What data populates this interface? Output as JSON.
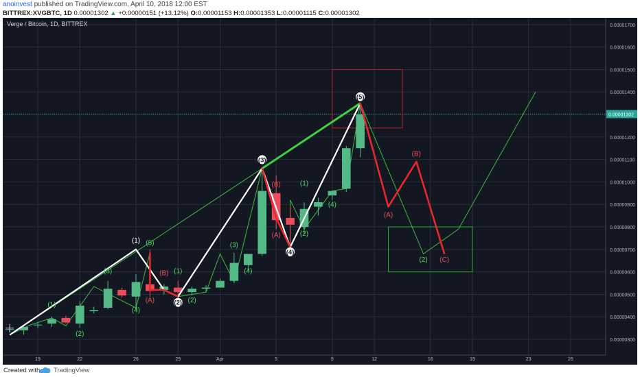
{
  "header": {
    "user": "anoinvest",
    "published": "published on TradingView.com, April 10, 2018 12:00 EST",
    "symbol": "BITTREX:XVGBTC, 1D",
    "last": "0.00001302",
    "change_arrow": "▲",
    "change": "+0.00000151 (+13.12%)",
    "o_label": "O:",
    "o": "0.00001153",
    "h_label": "H:",
    "h": "0.00001353",
    "l_label": "L:",
    "l": "0.00001115",
    "c_label": "C:",
    "c": "0.00001302"
  },
  "footer": {
    "created": "Created with",
    "brand": "TradingView"
  },
  "chart_data": {
    "type": "candlestick",
    "title": "Verge / Bitcoin, 1D, BITTREX",
    "price_label": "0.00001302",
    "y_ticks": [
      "0.00001700",
      "0.00001600",
      "0.00001500",
      "0.00001400",
      "0.00001300",
      "0.00001200",
      "0.00001100",
      "0.00001000",
      "0.00000900",
      "0.00000800",
      "0.00000700",
      "0.00000600",
      "0.00000500",
      "0.00000400",
      "0.00000300"
    ],
    "x_ticks": [
      {
        "label": "19",
        "day": 0
      },
      {
        "label": "22",
        "day": 3
      },
      {
        "label": "26",
        "day": 7
      },
      {
        "label": "29",
        "day": 10
      },
      {
        "label": "Apr",
        "day": 13
      },
      {
        "label": "5",
        "day": 17
      },
      {
        "label": "9",
        "day": 21
      },
      {
        "label": "12",
        "day": 24
      },
      {
        "label": "16",
        "day": 28
      },
      {
        "label": "19",
        "day": 31
      },
      {
        "label": "23",
        "day": 35
      },
      {
        "label": "26",
        "day": 38
      }
    ],
    "ylim": [
      2.3e-06,
      1.73e-05
    ],
    "xlim_days": [
      -2.5,
      40.5
    ],
    "colors": {
      "up": "#53b987",
      "down": "#eb4d5c",
      "background": "#131722",
      "grid": "#2a2e39"
    },
    "candles": [
      {
        "day": -2,
        "o": 3.45,
        "h": 3.55,
        "l": 3.3,
        "c": 3.45
      },
      {
        "day": -1,
        "o": 3.4,
        "h": 3.6,
        "l": 3.2,
        "c": 3.55
      },
      {
        "day": 0,
        "o": 3.65,
        "h": 3.75,
        "l": 3.5,
        "c": 3.65
      },
      {
        "day": 1,
        "o": 3.7,
        "h": 4.0,
        "l": 3.55,
        "c": 3.9
      },
      {
        "day": 2,
        "o": 3.95,
        "h": 4.05,
        "l": 3.7,
        "c": 3.75
      },
      {
        "day": 3,
        "o": 3.7,
        "h": 4.7,
        "l": 3.5,
        "c": 4.5
      },
      {
        "day": 4,
        "o": 4.25,
        "h": 4.45,
        "l": 4.15,
        "c": 4.3
      },
      {
        "day": 5,
        "o": 4.4,
        "h": 5.6,
        "l": 4.35,
        "c": 5.25
      },
      {
        "day": 6,
        "o": 5.2,
        "h": 5.3,
        "l": 4.85,
        "c": 4.95
      },
      {
        "day": 7,
        "o": 4.9,
        "h": 5.9,
        "l": 4.3,
        "c": 5.55
      },
      {
        "day": 8,
        "o": 5.45,
        "h": 7.0,
        "l": 4.9,
        "c": 5.15
      },
      {
        "day": 9,
        "o": 5.2,
        "h": 5.45,
        "l": 5.0,
        "c": 5.35
      },
      {
        "day": 10,
        "o": 5.3,
        "h": 5.6,
        "l": 4.7,
        "c": 5.1
      },
      {
        "day": 11,
        "o": 5.1,
        "h": 5.35,
        "l": 4.95,
        "c": 5.25
      },
      {
        "day": 12,
        "o": 5.25,
        "h": 5.4,
        "l": 5.1,
        "c": 5.3
      },
      {
        "day": 13,
        "o": 5.3,
        "h": 5.7,
        "l": 5.3,
        "c": 5.6
      },
      {
        "day": 14,
        "o": 5.6,
        "h": 6.85,
        "l": 5.5,
        "c": 6.4
      },
      {
        "day": 15,
        "o": 6.3,
        "h": 6.8,
        "l": 6.05,
        "c": 6.8
      },
      {
        "day": 16,
        "o": 6.8,
        "h": 10.6,
        "l": 6.7,
        "c": 9.6
      },
      {
        "day": 17,
        "o": 9.5,
        "h": 10.3,
        "l": 7.9,
        "c": 8.3
      },
      {
        "day": 18,
        "o": 8.4,
        "h": 8.9,
        "l": 7.0,
        "c": 8.1
      },
      {
        "day": 19,
        "o": 8.0,
        "h": 9.1,
        "l": 7.7,
        "c": 8.8
      },
      {
        "day": 20,
        "o": 8.9,
        "h": 9.3,
        "l": 8.5,
        "c": 9.1
      },
      {
        "day": 21,
        "o": 9.4,
        "h": 9.6,
        "l": 9.2,
        "c": 9.6
      },
      {
        "day": 22,
        "o": 9.7,
        "h": 11.6,
        "l": 9.55,
        "c": 11.5
      },
      {
        "day": 23,
        "o": 11.5,
        "h": 13.5,
        "l": 11.1,
        "c": 13.0
      }
    ],
    "annotations": {
      "white_path": [
        [
          -2,
          3.2
        ],
        [
          7,
          7.0
        ],
        [
          9,
          5.2
        ],
        [
          10,
          4.9
        ],
        [
          16,
          10.6
        ],
        [
          18,
          7.1
        ],
        [
          23,
          13.5
        ]
      ],
      "green_thick": [
        [
          16,
          10.6
        ],
        [
          23,
          13.5
        ]
      ],
      "green_thin": [
        [
          [
            -2,
            3.2
          ],
          [
            16,
            10.6
          ]
        ],
        [
          [
            -2,
            3.2
          ],
          [
            -0.5,
            3.65
          ],
          [
            1,
            3.95
          ],
          [
            2,
            3.6
          ],
          [
            4,
            5.35
          ],
          [
            7,
            4.4
          ],
          [
            8,
            6.85
          ]
        ],
        [
          [
            10,
            4.9
          ],
          [
            12,
            5.1
          ],
          [
            13,
            6.8
          ],
          [
            14,
            5.55
          ],
          [
            16,
            10.6
          ]
        ],
        [
          [
            18,
            7.1
          ],
          [
            18,
            9.2
          ],
          [
            19,
            7.9
          ],
          [
            21,
            9.6
          ],
          [
            22,
            9.7
          ],
          [
            23,
            13.5
          ]
        ],
        [
          [
            23,
            13.5
          ],
          [
            27.5,
            6.8
          ],
          [
            30,
            7.9
          ],
          [
            35.5,
            14.0
          ]
        ]
      ],
      "red_paths": [
        [
          [
            8,
            6.85
          ],
          [
            8,
            5.2
          ],
          [
            9,
            5.2
          ],
          [
            10,
            4.9
          ]
        ],
        [
          [
            16,
            10.6
          ],
          [
            17,
            8.4
          ],
          [
            18,
            7.1
          ]
        ],
        [
          [
            23,
            13.5
          ],
          [
            25,
            8.9
          ],
          [
            27,
            10.9
          ],
          [
            29,
            6.8
          ]
        ]
      ],
      "boxes": [
        {
          "d0": 21,
          "d1": 26,
          "p0": 15.0,
          "p1": 12.4,
          "color": "#b22222"
        },
        {
          "d0": 25,
          "d1": 31,
          "p0": 8.0,
          "p1": 6.0,
          "color": "#2eaa2e"
        }
      ],
      "labels": [
        {
          "text": "(1)",
          "day": 7,
          "price": 7.3,
          "color": "#ffffff",
          "style": "plain"
        },
        {
          "text": "(5)",
          "day": 8,
          "price": 7.2,
          "color": "#4cd964",
          "style": "plain"
        },
        {
          "text": "(1)",
          "day": 1,
          "price": 4.45,
          "color": "#4cd964",
          "style": "plain"
        },
        {
          "text": "(2)",
          "day": 3,
          "price": 3.15,
          "color": "#4cd964",
          "style": "plain"
        },
        {
          "text": "(3)",
          "day": 5,
          "price": 5.95,
          "color": "#4cd964",
          "style": "plain"
        },
        {
          "text": "(4)",
          "day": 7,
          "price": 4.2,
          "color": "#4cd964",
          "style": "plain"
        },
        {
          "text": "(A)",
          "day": 8,
          "price": 4.65,
          "color": "#eb4d5c",
          "style": "plain"
        },
        {
          "text": "(B)",
          "day": 9,
          "price": 5.85,
          "color": "#eb4d5c",
          "style": "plain"
        },
        {
          "text": "(1)",
          "day": 10,
          "price": 5.95,
          "color": "#4cd964",
          "style": "plain"
        },
        {
          "text": "(2)",
          "day": 10,
          "price": 4.55,
          "color": "#ffffff",
          "style": "badge"
        },
        {
          "text": "(2)",
          "day": 11,
          "price": 4.65,
          "color": "#4cd964",
          "style": "plain"
        },
        {
          "text": "(3)",
          "day": 14,
          "price": 7.1,
          "color": "#4cd964",
          "style": "plain"
        },
        {
          "text": "(4)",
          "day": 15,
          "price": 5.95,
          "color": "#4cd964",
          "style": "plain"
        },
        {
          "text": "(3)",
          "day": 16,
          "price": 10.9,
          "color": "#ffffff",
          "style": "badge"
        },
        {
          "text": "(B)",
          "day": 17,
          "price": 9.8,
          "color": "#eb4d5c",
          "style": "plain"
        },
        {
          "text": "(A)",
          "day": 17,
          "price": 7.55,
          "color": "#eb4d5c",
          "style": "plain"
        },
        {
          "text": "(1)",
          "day": 19,
          "price": 9.85,
          "color": "#4cd964",
          "style": "plain"
        },
        {
          "text": "(4)",
          "day": 18,
          "price": 6.8,
          "color": "#ffffff",
          "style": "badge"
        },
        {
          "text": "(2)",
          "day": 19,
          "price": 7.6,
          "color": "#4cd964",
          "style": "plain"
        },
        {
          "text": "(4)",
          "day": 21,
          "price": 8.9,
          "color": "#4cd964",
          "style": "plain"
        },
        {
          "text": "(5)",
          "day": 23,
          "price": 13.7,
          "color": "#4cd964",
          "style": "badge"
        },
        {
          "text": "(A)",
          "day": 25,
          "price": 8.45,
          "color": "#eb4d5c",
          "style": "plain"
        },
        {
          "text": "(B)",
          "day": 27,
          "price": 11.15,
          "color": "#eb4d5c",
          "style": "plain"
        },
        {
          "text": "(2)",
          "day": 27.5,
          "price": 6.45,
          "color": "#4cd964",
          "style": "plain"
        },
        {
          "text": "(C)",
          "day": 29,
          "price": 6.45,
          "color": "#eb4d5c",
          "style": "plain"
        }
      ]
    }
  }
}
